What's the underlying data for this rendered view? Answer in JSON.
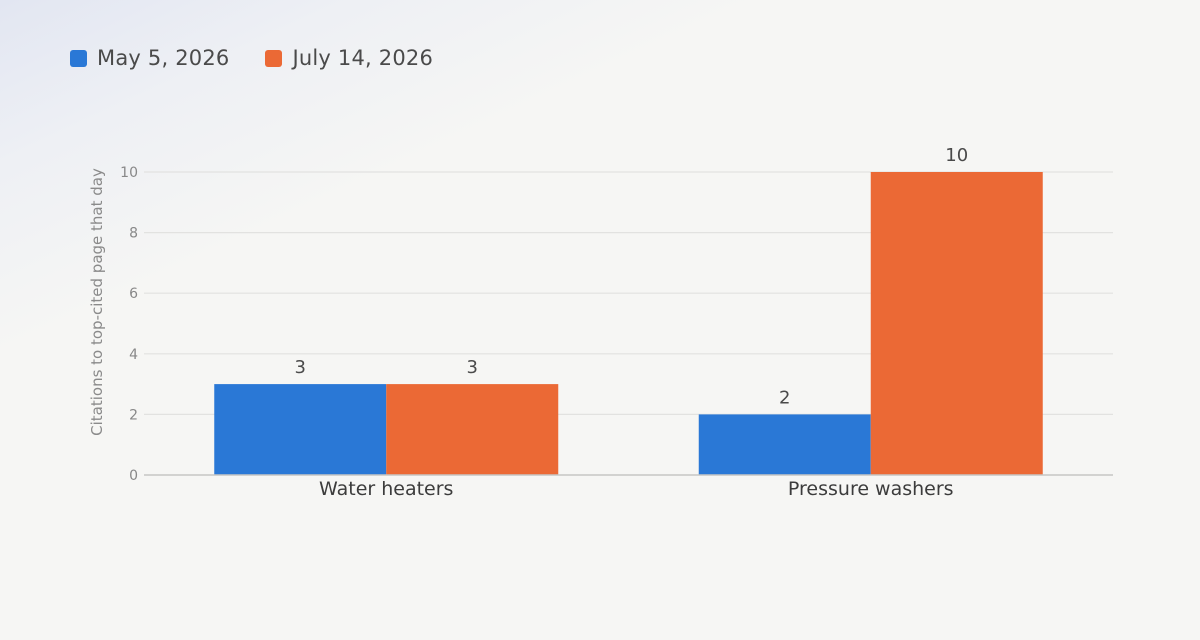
{
  "chart_data": {
    "type": "bar",
    "categories": [
      "Water heaters",
      "Pressure washers"
    ],
    "series": [
      {
        "name": "May 5, 2026",
        "values": [
          3,
          2
        ],
        "color": "#2a78d6"
      },
      {
        "name": "July 14, 2026",
        "values": [
          3,
          10
        ],
        "color": "#eb6935"
      }
    ],
    "ylabel": "Citations to top-cited page that day",
    "xlabel": "",
    "ylim": [
      0,
      10
    ],
    "yticks": [
      0,
      2,
      4,
      6,
      8,
      10
    ],
    "grid": true,
    "legend_position": "top-left",
    "data_labels": true,
    "colors": {
      "gridline": "#e2e2e0",
      "baseline": "#c6c6c4"
    }
  }
}
